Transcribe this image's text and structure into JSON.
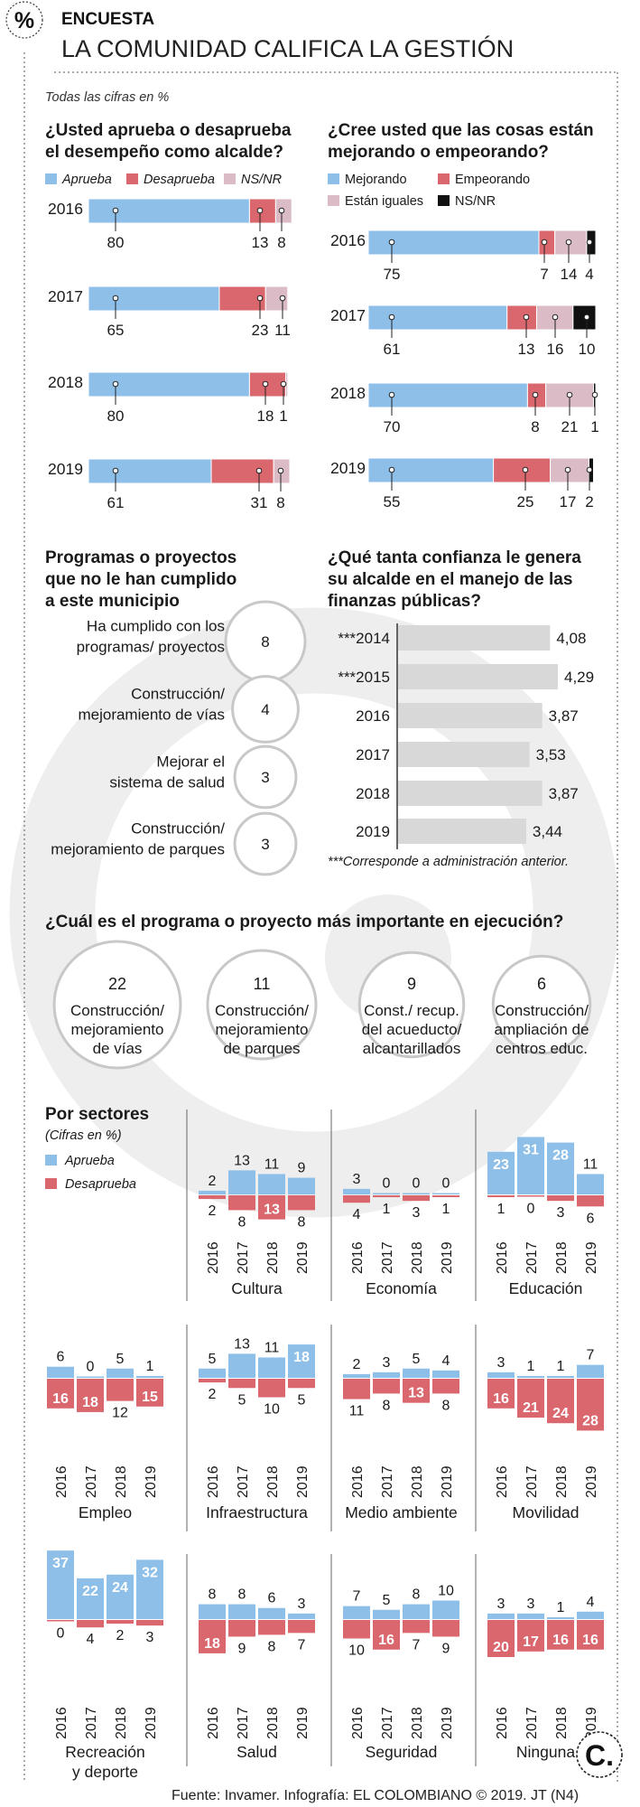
{
  "header": {
    "badge_symbol": "%",
    "kicker": "ENCUESTA",
    "title": "LA COMUNIDAD CALIFICA LA GESTIÓN",
    "note": "Todas las cifras en %"
  },
  "colors": {
    "blue": "#8ebfe8",
    "red": "#d9676d",
    "pink": "#dbbcc6",
    "black": "#111111",
    "gray_bar": "#d8d8d8",
    "watermark": "#ededed"
  },
  "footer": {
    "source": "Fuente: Invamer. Infografía: EL COLOMBIANO © 2019. JT (N4)",
    "logo_letter": "C."
  },
  "chart_data": [
    {
      "id": "approval",
      "type": "bar",
      "stacked": true,
      "orientation": "horizontal",
      "title": "¿Usted aprueba o desaprueba el desempeño como alcalde?",
      "title_lines": [
        "¿Usted aprueba o desaprueba",
        "el desempeño como alcalde?"
      ],
      "legend": [
        "Aprueba",
        "Desaprueba",
        "NS/NR"
      ],
      "categories": [
        "2016",
        "2017",
        "2018",
        "2019"
      ],
      "series": [
        {
          "name": "Aprueba",
          "values": [
            80,
            65,
            80,
            61
          ]
        },
        {
          "name": "Desaprueba",
          "values": [
            13,
            23,
            18,
            31
          ]
        },
        {
          "name": "NS/NR",
          "values": [
            8,
            11,
            1,
            8
          ]
        }
      ],
      "xlim": [
        0,
        100
      ]
    },
    {
      "id": "trend",
      "type": "bar",
      "stacked": true,
      "orientation": "horizontal",
      "title": "¿Cree usted que las cosas están mejorando o empeorando?",
      "title_lines": [
        "¿Cree usted que las cosas están",
        "mejorando o empeorando?"
      ],
      "legend": [
        "Mejorando",
        "Empeorando",
        "Están iguales",
        "NS/NR"
      ],
      "categories": [
        "2016",
        "2017",
        "2018",
        "2019"
      ],
      "series": [
        {
          "name": "Mejorando",
          "values": [
            75,
            61,
            70,
            55
          ]
        },
        {
          "name": "Empeorando",
          "values": [
            7,
            13,
            8,
            25
          ]
        },
        {
          "name": "Están iguales",
          "values": [
            14,
            16,
            21,
            17
          ]
        },
        {
          "name": "NS/NR",
          "values": [
            4,
            10,
            1,
            2
          ]
        }
      ],
      "xlim": [
        0,
        100
      ]
    },
    {
      "id": "unfulfilled",
      "type": "bubble",
      "title": "Programas o proyectos que no le han cumplido a este municipio",
      "title_lines": [
        "Programas o proyectos",
        "que no le han cumplido",
        "a este municipio"
      ],
      "items": [
        {
          "label_lines": [
            "Ha cumplido con los",
            "programas/ proyectos"
          ],
          "value": 8
        },
        {
          "label_lines": [
            "Construcción/",
            "mejoramiento de vías"
          ],
          "value": 4
        },
        {
          "label_lines": [
            "Mejorar el",
            "sistema de salud"
          ],
          "value": 3
        },
        {
          "label_lines": [
            "Construcción/",
            "mejoramiento de parques"
          ],
          "value": 3
        }
      ]
    },
    {
      "id": "confidence",
      "type": "bar",
      "orientation": "horizontal",
      "title": "¿Qué tanta confianza le genera su alcalde en el manejo de las finanzas públicas?",
      "title_lines": [
        "¿Qué tanta confianza le genera",
        "su alcalde en el manejo de las",
        "finanzas públicas?"
      ],
      "categories": [
        "***2014",
        "***2015",
        "2016",
        "2017",
        "2018",
        "2019"
      ],
      "values": [
        4.08,
        4.29,
        3.87,
        3.53,
        3.87,
        3.44
      ],
      "value_labels": [
        "4,08",
        "4,29",
        "3,87",
        "3,53",
        "3,87",
        "3,44"
      ],
      "xlim": [
        0,
        5
      ],
      "note": "***Corresponde a administración anterior."
    },
    {
      "id": "important",
      "type": "bubble",
      "title": "¿Cuál es el programa o proyecto más importante en ejecución?",
      "items": [
        {
          "label_lines": [
            "Construcción/",
            "mejoramiento",
            "de vías"
          ],
          "value": 22
        },
        {
          "label_lines": [
            "Construcción/",
            "mejoramiento",
            "de parques"
          ],
          "value": 11
        },
        {
          "label_lines": [
            "Const./ recup.",
            "del acueducto/",
            "alcantarillados"
          ],
          "value": 9
        },
        {
          "label_lines": [
            "Construcción/",
            "ampliación de",
            "centros educ."
          ],
          "value": 6
        }
      ]
    },
    {
      "id": "sectors",
      "type": "bar",
      "diverging": true,
      "title": "Por sectores",
      "subtitle": "(Cifras en %)",
      "legend": [
        "Aprueba",
        "Desaprueba"
      ],
      "years": [
        "2016",
        "2017",
        "2018",
        "2019"
      ],
      "sectors": [
        {
          "name_lines": [
            "Cultura"
          ],
          "aprueba": [
            2,
            13,
            11,
            9
          ],
          "desaprueba": [
            2,
            8,
            13,
            8
          ]
        },
        {
          "name_lines": [
            "Economía"
          ],
          "aprueba": [
            3,
            0,
            0,
            0
          ],
          "desaprueba": [
            4,
            1,
            3,
            1
          ]
        },
        {
          "name_lines": [
            "Educación"
          ],
          "aprueba": [
            23,
            31,
            28,
            11
          ],
          "desaprueba": [
            1,
            0,
            3,
            6
          ]
        },
        {
          "name_lines": [
            "Empleo"
          ],
          "aprueba": [
            6,
            0,
            5,
            1
          ],
          "desaprueba": [
            16,
            18,
            12,
            15
          ]
        },
        {
          "name_lines": [
            "Infraestructura"
          ],
          "aprueba": [
            5,
            13,
            11,
            18
          ],
          "desaprueba": [
            2,
            5,
            10,
            5
          ]
        },
        {
          "name_lines": [
            "Medio ambiente"
          ],
          "aprueba": [
            2,
            3,
            5,
            4
          ],
          "desaprueba": [
            11,
            8,
            13,
            8
          ]
        },
        {
          "name_lines": [
            "Movilidad"
          ],
          "aprueba": [
            3,
            1,
            1,
            7
          ],
          "desaprueba": [
            16,
            21,
            24,
            28
          ]
        },
        {
          "name_lines": [
            "Recreación",
            "y deporte"
          ],
          "aprueba": [
            37,
            22,
            24,
            32
          ],
          "desaprueba": [
            0,
            4,
            2,
            3
          ]
        },
        {
          "name_lines": [
            "Salud"
          ],
          "aprueba": [
            8,
            8,
            6,
            3
          ],
          "desaprueba": [
            18,
            9,
            8,
            7
          ]
        },
        {
          "name_lines": [
            "Seguridad"
          ],
          "aprueba": [
            7,
            5,
            8,
            10
          ],
          "desaprueba": [
            10,
            16,
            7,
            9
          ]
        },
        {
          "name_lines": [
            "Ninguna"
          ],
          "aprueba": [
            3,
            3,
            1,
            4
          ],
          "desaprueba": [
            20,
            17,
            16,
            16
          ]
        }
      ]
    }
  ]
}
